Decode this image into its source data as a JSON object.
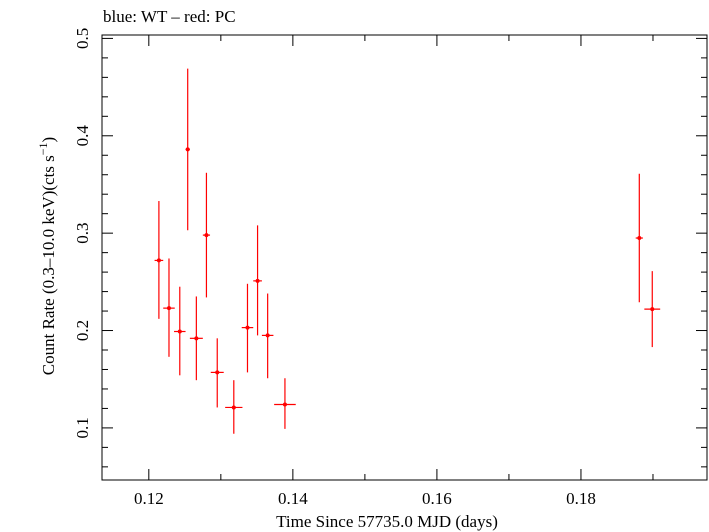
{
  "chart_data": {
    "type": "scatter",
    "title": "blue: WT – red: PC",
    "xlabel": "Time Since 57735.0 MJD (days)",
    "ylabel_main": "Count Rate (0.3–10.0 keV)(cts s",
    "ylabel_sup": "−1",
    "ylabel_close": ")",
    "xlim": [
      0.1135,
      0.1975
    ],
    "ylim": [
      0.0465,
      0.5035
    ],
    "xticks": [
      0.12,
      0.14,
      0.16,
      0.18
    ],
    "xtick_labels": [
      "0.12",
      "0.14",
      "0.16",
      "0.18"
    ],
    "yticks": [
      0.1,
      0.2,
      0.3,
      0.4,
      0.5
    ],
    "ytick_labels": [
      "0.1",
      "0.2",
      "0.3",
      "0.4",
      "0.5"
    ],
    "grid": false,
    "series": [
      {
        "color": "#ff0000",
        "points": [
          {
            "x": 0.1214,
            "y": 0.272,
            "xerr": 0.0006,
            "ylo": 0.212,
            "yhi": 0.333
          },
          {
            "x": 0.1228,
            "y": 0.223,
            "xerr": 0.0008,
            "ylo": 0.173,
            "yhi": 0.274
          },
          {
            "x": 0.1243,
            "y": 0.199,
            "xerr": 0.0008,
            "ylo": 0.154,
            "yhi": 0.245
          },
          {
            "x": 0.1254,
            "y": 0.386,
            "xerr": 0.0003,
            "ylo": 0.303,
            "yhi": 0.469
          },
          {
            "x": 0.1266,
            "y": 0.192,
            "xerr": 0.0009,
            "ylo": 0.149,
            "yhi": 0.235
          },
          {
            "x": 0.128,
            "y": 0.298,
            "xerr": 0.0005,
            "ylo": 0.234,
            "yhi": 0.362
          },
          {
            "x": 0.1295,
            "y": 0.157,
            "xerr": 0.0009,
            "ylo": 0.121,
            "yhi": 0.192
          },
          {
            "x": 0.1318,
            "y": 0.121,
            "xerr": 0.0012,
            "ylo": 0.094,
            "yhi": 0.149
          },
          {
            "x": 0.1337,
            "y": 0.203,
            "xerr": 0.0008,
            "ylo": 0.157,
            "yhi": 0.248
          },
          {
            "x": 0.1351,
            "y": 0.251,
            "xerr": 0.0006,
            "ylo": 0.195,
            "yhi": 0.308
          },
          {
            "x": 0.1365,
            "y": 0.195,
            "xerr": 0.0008,
            "ylo": 0.151,
            "yhi": 0.238
          },
          {
            "x": 0.1389,
            "y": 0.124,
            "xerr": 0.0015,
            "ylo": 0.099,
            "yhi": 0.151
          },
          {
            "x": 0.1881,
            "y": 0.295,
            "xerr": 0.0005,
            "ylo": 0.229,
            "yhi": 0.361
          },
          {
            "x": 0.1899,
            "y": 0.222,
            "xerr": 0.0011,
            "ylo": 0.183,
            "yhi": 0.261
          }
        ]
      }
    ]
  }
}
